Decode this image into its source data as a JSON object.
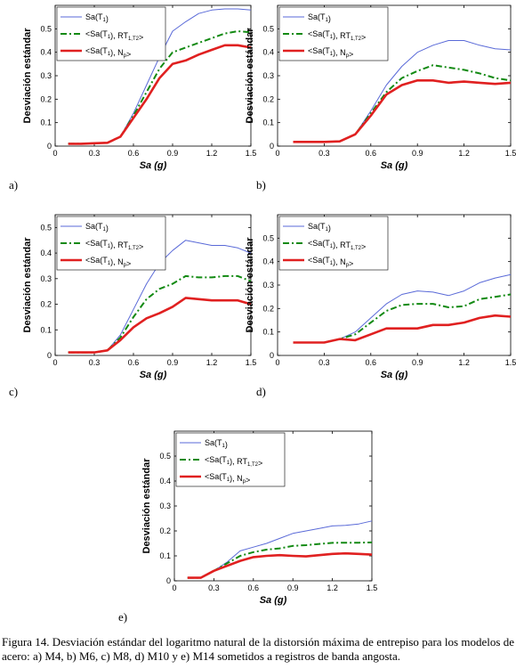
{
  "figure": {
    "caption": "Figura 14. Desviación estándar del logaritmo natural de la distorsión máxima de entrepiso para los modelos de acero: a) M4, b) M6, c) M8, d) M10 y e) M14 sometidos a registros de banda angosta."
  },
  "chart_data": [
    {
      "type": "line",
      "panel_label": "a)",
      "xlabel": "Sa (g)",
      "ylabel": "Desviación estándar",
      "xlim": [
        0,
        1.5
      ],
      "ylim": [
        0,
        0.6
      ],
      "xticks": [
        "0",
        "0.3",
        "0.6",
        "0.9",
        "1.2",
        "1.5"
      ],
      "yticks": [
        "0",
        "0.1",
        "0.2",
        "0.3",
        "0.4",
        "0.5"
      ],
      "grid": false,
      "legend_position": "top-left",
      "series": [
        {
          "name": "Sa(T1)",
          "x": [
            0.1,
            0.2,
            0.3,
            0.4,
            0.5,
            0.6,
            0.7,
            0.8,
            0.9,
            1.0,
            1.1,
            1.2,
            1.3,
            1.4,
            1.5
          ],
          "y": [
            0.01,
            0.01,
            0.012,
            0.014,
            0.04,
            0.14,
            0.26,
            0.38,
            0.49,
            0.53,
            0.565,
            0.58,
            0.585,
            0.585,
            0.58
          ]
        },
        {
          "name": "<Sa(T1), RT1,T2>",
          "x": [
            0.1,
            0.2,
            0.3,
            0.4,
            0.5,
            0.6,
            0.7,
            0.8,
            0.9,
            1.0,
            1.1,
            1.2,
            1.3,
            1.4,
            1.5
          ],
          "y": [
            0.01,
            0.01,
            0.012,
            0.014,
            0.04,
            0.13,
            0.23,
            0.33,
            0.4,
            0.42,
            0.44,
            0.46,
            0.48,
            0.49,
            0.485
          ]
        },
        {
          "name": "<Sa(T1), Np>",
          "x": [
            0.1,
            0.2,
            0.3,
            0.4,
            0.5,
            0.6,
            0.7,
            0.8,
            0.9,
            1.0,
            1.1,
            1.2,
            1.3,
            1.4,
            1.5
          ],
          "y": [
            0.01,
            0.01,
            0.012,
            0.014,
            0.04,
            0.12,
            0.2,
            0.29,
            0.35,
            0.365,
            0.39,
            0.41,
            0.43,
            0.43,
            0.42
          ]
        }
      ]
    },
    {
      "type": "line",
      "panel_label": "b)",
      "xlabel": "Sa (g)",
      "ylabel": "Desviación estándar",
      "xlim": [
        0,
        1.5
      ],
      "ylim": [
        0,
        0.6
      ],
      "xticks": [
        "0",
        "0.3",
        "0.6",
        "0.9",
        "1.2",
        "1.5"
      ],
      "yticks": [
        "0",
        "0.1",
        "0.2",
        "0.3",
        "0.4",
        "0.5"
      ],
      "grid": false,
      "legend_position": "top-left",
      "series": [
        {
          "name": "Sa(T1)",
          "x": [
            0.1,
            0.2,
            0.3,
            0.4,
            0.5,
            0.6,
            0.7,
            0.8,
            0.9,
            1.0,
            1.1,
            1.2,
            1.3,
            1.4,
            1.5
          ],
          "y": [
            0.018,
            0.018,
            0.018,
            0.02,
            0.05,
            0.15,
            0.26,
            0.34,
            0.4,
            0.43,
            0.45,
            0.45,
            0.43,
            0.415,
            0.41
          ]
        },
        {
          "name": "<Sa(T1), RT1,T2>",
          "x": [
            0.1,
            0.2,
            0.3,
            0.4,
            0.5,
            0.6,
            0.7,
            0.8,
            0.9,
            1.0,
            1.1,
            1.2,
            1.3,
            1.4,
            1.5
          ],
          "y": [
            0.018,
            0.018,
            0.018,
            0.02,
            0.05,
            0.14,
            0.23,
            0.29,
            0.32,
            0.345,
            0.335,
            0.325,
            0.31,
            0.29,
            0.28
          ]
        },
        {
          "name": "<Sa(T1), Np>",
          "x": [
            0.1,
            0.2,
            0.3,
            0.4,
            0.5,
            0.6,
            0.7,
            0.8,
            0.9,
            1.0,
            1.1,
            1.2,
            1.3,
            1.4,
            1.5
          ],
          "y": [
            0.018,
            0.018,
            0.018,
            0.02,
            0.05,
            0.13,
            0.22,
            0.26,
            0.28,
            0.28,
            0.27,
            0.275,
            0.27,
            0.265,
            0.27
          ]
        }
      ]
    },
    {
      "type": "line",
      "panel_label": "c)",
      "xlabel": "Sa (g)",
      "ylabel": "Desviación estándar",
      "xlim": [
        0,
        1.5
      ],
      "ylim": [
        0,
        0.55
      ],
      "xticks": [
        "0",
        "0.3",
        "0.6",
        "0.9",
        "1.2",
        "1.5"
      ],
      "yticks": [
        "0",
        "0.1",
        "0.2",
        "0.3",
        "0.4",
        "0.5"
      ],
      "grid": false,
      "legend_position": "top-left",
      "series": [
        {
          "name": "Sa(T1)",
          "x": [
            0.1,
            0.2,
            0.3,
            0.4,
            0.5,
            0.6,
            0.7,
            0.8,
            0.9,
            1.0,
            1.1,
            1.2,
            1.3,
            1.4,
            1.5
          ],
          "y": [
            0.012,
            0.012,
            0.012,
            0.02,
            0.08,
            0.18,
            0.28,
            0.36,
            0.41,
            0.45,
            0.44,
            0.43,
            0.43,
            0.42,
            0.4
          ]
        },
        {
          "name": "<Sa(T1), RT1,T2>",
          "x": [
            0.1,
            0.2,
            0.3,
            0.4,
            0.5,
            0.6,
            0.7,
            0.8,
            0.9,
            1.0,
            1.1,
            1.2,
            1.3,
            1.4,
            1.5
          ],
          "y": [
            0.012,
            0.012,
            0.012,
            0.02,
            0.07,
            0.15,
            0.22,
            0.26,
            0.28,
            0.31,
            0.305,
            0.305,
            0.31,
            0.31,
            0.29
          ]
        },
        {
          "name": "<Sa(T1), Np>",
          "x": [
            0.1,
            0.2,
            0.3,
            0.4,
            0.5,
            0.6,
            0.7,
            0.8,
            0.9,
            1.0,
            1.1,
            1.2,
            1.3,
            1.4,
            1.5
          ],
          "y": [
            0.012,
            0.012,
            0.012,
            0.02,
            0.06,
            0.11,
            0.145,
            0.165,
            0.19,
            0.225,
            0.22,
            0.215,
            0.215,
            0.215,
            0.2
          ]
        }
      ]
    },
    {
      "type": "line",
      "panel_label": "d)",
      "xlabel": "Sa (g)",
      "ylabel": "Desviación estándar",
      "xlim": [
        0,
        1.5
      ],
      "ylim": [
        0,
        0.6
      ],
      "xticks": [
        "0",
        "0.3",
        "0.6",
        "0.9",
        "1.2",
        "1.5"
      ],
      "yticks": [
        "0",
        "0.1",
        "0.2",
        "0.3",
        "0.4",
        "0.5"
      ],
      "grid": false,
      "legend_position": "top-left",
      "series": [
        {
          "name": "Sa(T1)",
          "x": [
            0.1,
            0.2,
            0.3,
            0.4,
            0.5,
            0.6,
            0.7,
            0.8,
            0.9,
            1.0,
            1.1,
            1.2,
            1.3,
            1.4,
            1.5
          ],
          "y": [
            0.055,
            0.055,
            0.055,
            0.07,
            0.1,
            0.16,
            0.22,
            0.26,
            0.275,
            0.27,
            0.255,
            0.275,
            0.31,
            0.33,
            0.345
          ]
        },
        {
          "name": "<Sa(T1), RT1,T2>",
          "x": [
            0.1,
            0.2,
            0.3,
            0.4,
            0.5,
            0.6,
            0.7,
            0.8,
            0.9,
            1.0,
            1.1,
            1.2,
            1.3,
            1.4,
            1.5
          ],
          "y": [
            0.055,
            0.055,
            0.055,
            0.07,
            0.09,
            0.14,
            0.19,
            0.215,
            0.22,
            0.22,
            0.205,
            0.21,
            0.24,
            0.25,
            0.26
          ]
        },
        {
          "name": "<Sa(T1), Np>",
          "x": [
            0.1,
            0.2,
            0.3,
            0.4,
            0.5,
            0.6,
            0.7,
            0.8,
            0.9,
            1.0,
            1.1,
            1.2,
            1.3,
            1.4,
            1.5
          ],
          "y": [
            0.055,
            0.055,
            0.055,
            0.07,
            0.065,
            0.09,
            0.115,
            0.115,
            0.115,
            0.13,
            0.13,
            0.14,
            0.16,
            0.17,
            0.165
          ]
        }
      ]
    },
    {
      "type": "line",
      "panel_label": "e)",
      "xlabel": "Sa (g)",
      "ylabel": "Desviación estándar",
      "xlim": [
        0,
        1.5
      ],
      "ylim": [
        0,
        0.6
      ],
      "xticks": [
        "0",
        "0.3",
        "0.6",
        "0.9",
        "1.2",
        "1.5"
      ],
      "yticks": [
        "0",
        "0.1",
        "0.2",
        "0.3",
        "0.4",
        "0.5"
      ],
      "grid": false,
      "legend_position": "top-left",
      "series": [
        {
          "name": "Sa(T1)",
          "x": [
            0.1,
            0.2,
            0.3,
            0.4,
            0.5,
            0.6,
            0.7,
            0.8,
            0.9,
            1.0,
            1.1,
            1.2,
            1.3,
            1.4,
            1.5
          ],
          "y": [
            0.012,
            0.012,
            0.04,
            0.075,
            0.12,
            0.135,
            0.15,
            0.17,
            0.19,
            0.2,
            0.21,
            0.22,
            0.222,
            0.228,
            0.24
          ]
        },
        {
          "name": "<Sa(T1), RT1,T2>",
          "x": [
            0.1,
            0.2,
            0.3,
            0.4,
            0.5,
            0.6,
            0.7,
            0.8,
            0.9,
            1.0,
            1.1,
            1.2,
            1.3,
            1.4,
            1.5
          ],
          "y": [
            0.012,
            0.012,
            0.04,
            0.07,
            0.1,
            0.115,
            0.125,
            0.13,
            0.14,
            0.143,
            0.148,
            0.152,
            0.153,
            0.153,
            0.154
          ]
        },
        {
          "name": "<Sa(T1), Np>",
          "x": [
            0.1,
            0.2,
            0.3,
            0.4,
            0.5,
            0.6,
            0.7,
            0.8,
            0.9,
            1.0,
            1.1,
            1.2,
            1.3,
            1.4,
            1.5
          ],
          "y": [
            0.012,
            0.012,
            0.04,
            0.06,
            0.08,
            0.095,
            0.1,
            0.103,
            0.1,
            0.098,
            0.103,
            0.108,
            0.11,
            0.108,
            0.105
          ]
        }
      ]
    }
  ],
  "series_styles": [
    {
      "color": "#5a6ad8"
    },
    {
      "color": "#138a13"
    },
    {
      "color": "#e02020"
    }
  ]
}
